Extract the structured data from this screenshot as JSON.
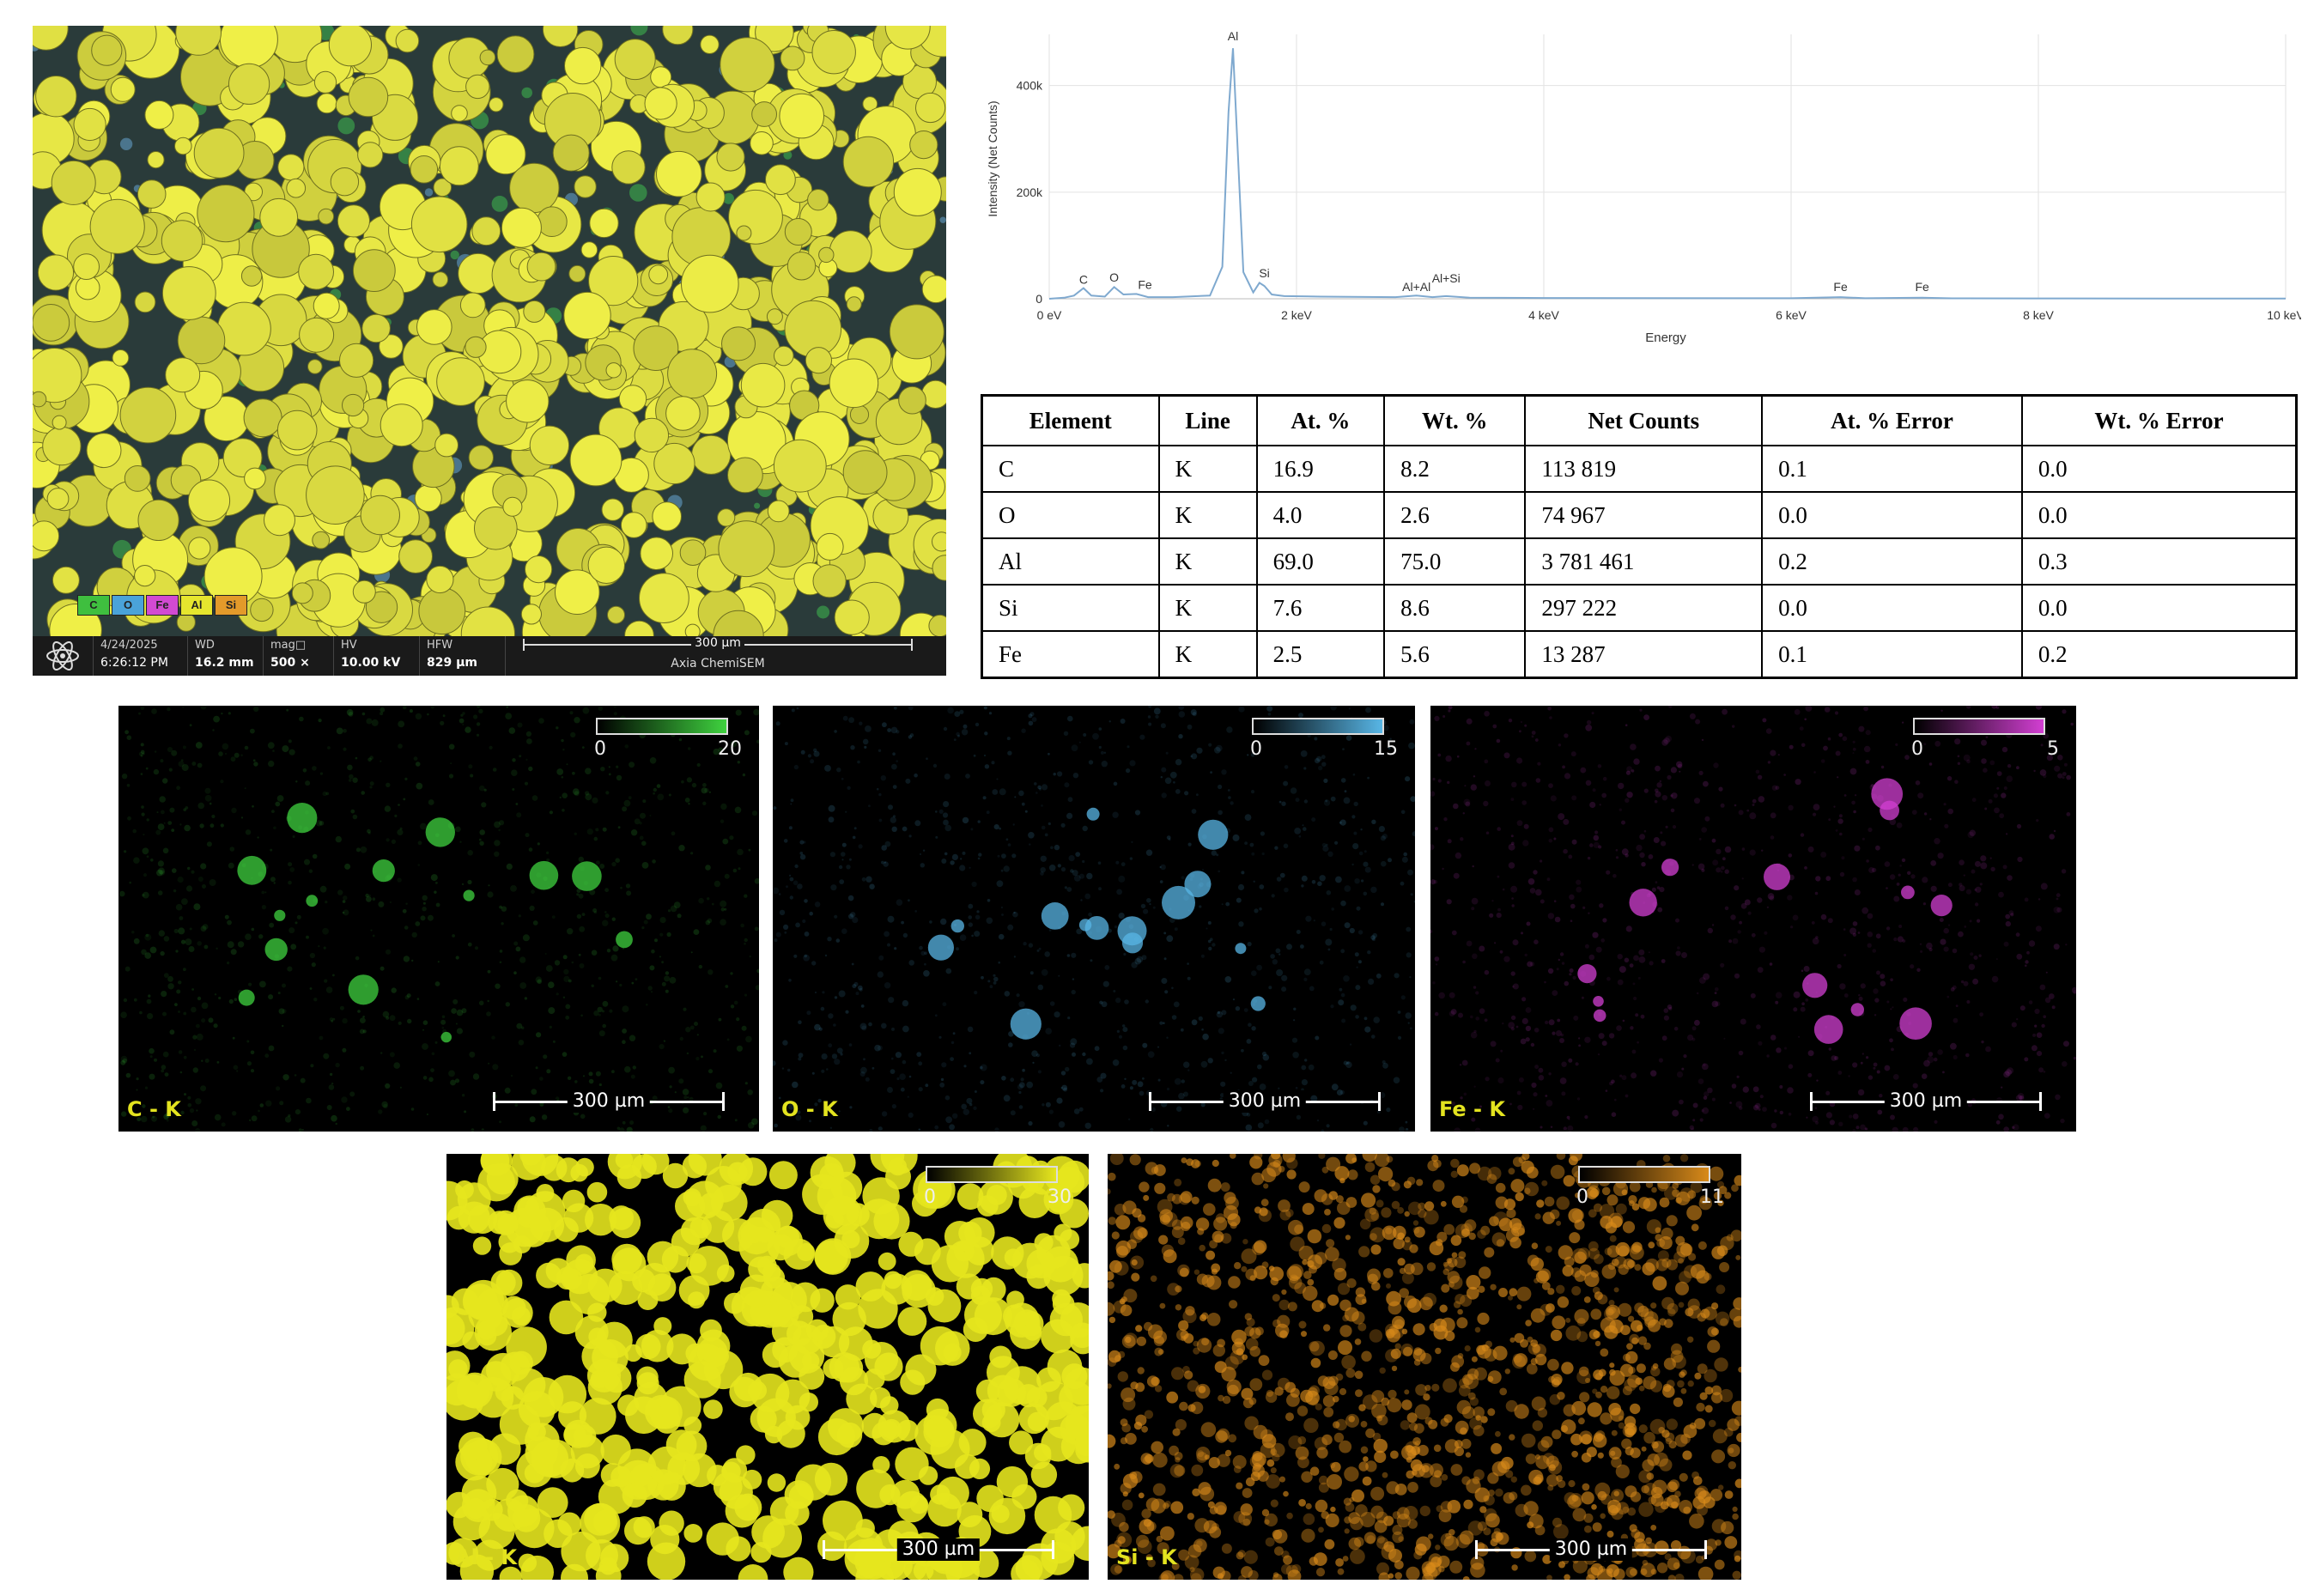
{
  "sem": {
    "date": "4/24/2025",
    "time": "6:26:12 PM",
    "wd_label": "WD",
    "wd_value": "16.2 mm",
    "mag_label": "mag□",
    "mag_value": "500 ×",
    "hv_label": "HV",
    "hv_value": "10.00 kV",
    "hfw_label": "HFW",
    "hfw_value": "829 µm",
    "scale_label": "300 µm",
    "instrument": "Axia ChemiSEM",
    "legend": [
      {
        "label": "C",
        "color": "#3fbf3f"
      },
      {
        "label": "O",
        "color": "#4aa3d9"
      },
      {
        "label": "Fe",
        "color": "#d24ad2"
      },
      {
        "label": "Al",
        "color": "#e6e62e"
      },
      {
        "label": "Si",
        "color": "#e39a2a"
      }
    ]
  },
  "chart_data": {
    "type": "line",
    "title": "",
    "xlabel": "Energy",
    "ylabel": "Intensity (Net Counts)",
    "xlim": [
      0,
      10
    ],
    "ylim": [
      0,
      480000
    ],
    "x_ticks": [
      "0 eV",
      "2 keV",
      "4 keV",
      "6 keV",
      "8 keV",
      "10 keV"
    ],
    "y_ticks": [
      "0",
      "200k",
      "400k"
    ],
    "series": [
      {
        "x": [
          0,
          0.12,
          0.2,
          0.277,
          0.34,
          0.45,
          0.525,
          0.6,
          0.705,
          0.8,
          1.0,
          1.3,
          1.4,
          1.45,
          1.486,
          1.52,
          1.57,
          1.65,
          1.7,
          1.74,
          1.8,
          1.9,
          2.2,
          2.8,
          2.97,
          3.1,
          3.21,
          3.4,
          4.0,
          6.0,
          6.4,
          6.6,
          7.06,
          7.3,
          8.0,
          9.0,
          10.0
        ],
        "y": [
          0,
          2000,
          6000,
          20000,
          6000,
          4000,
          22000,
          8000,
          9000,
          3000,
          3000,
          6000,
          60000,
          350000,
          470000,
          300000,
          50000,
          12000,
          30000,
          24000,
          8000,
          5000,
          4000,
          3000,
          6000,
          3000,
          5000,
          2000,
          1500,
          1000,
          3000,
          1000,
          2000,
          800,
          600,
          400,
          300
        ]
      }
    ],
    "peak_labels": [
      "Al",
      "C",
      "O",
      "Fe",
      "Si",
      "Al+Al",
      "Al+Si",
      "Fe",
      "Fe"
    ]
  },
  "table": {
    "headers": [
      "Element",
      "Line",
      "At. %",
      "Wt. %",
      "Net Counts",
      "At. % Error",
      "Wt. % Error"
    ],
    "rows": [
      [
        "C",
        "K",
        "16.9",
        "8.2",
        "113 819",
        "0.1",
        "0.0"
      ],
      [
        "O",
        "K",
        "4.0",
        "2.6",
        "74 967",
        "0.0",
        "0.0"
      ],
      [
        "Al",
        "K",
        "69.0",
        "75.0",
        "3 781 461",
        "0.2",
        "0.3"
      ],
      [
        "Si",
        "K",
        "7.6",
        "8.6",
        "297 222",
        "0.0",
        "0.0"
      ],
      [
        "Fe",
        "K",
        "2.5",
        "5.6",
        "13 287",
        "0.1",
        "0.2"
      ]
    ]
  },
  "maps": [
    {
      "label": "C - K",
      "scale": "300 µm",
      "min": "0",
      "max": "20",
      "color": "#3fd23f"
    },
    {
      "label": "O - K",
      "scale": "300 µm",
      "min": "0",
      "max": "15",
      "color": "#58b6e6"
    },
    {
      "label": "Fe - K",
      "scale": "300 µm",
      "min": "0",
      "max": "5",
      "color": "#d23fd2"
    },
    {
      "label": "Al - K",
      "scale": "300 µm",
      "min": "0",
      "max": "30",
      "color": "#e6e61e"
    },
    {
      "label": "Si - K",
      "scale": "300 µm",
      "min": "0",
      "max": "11",
      "color": "#d88a1a"
    }
  ]
}
